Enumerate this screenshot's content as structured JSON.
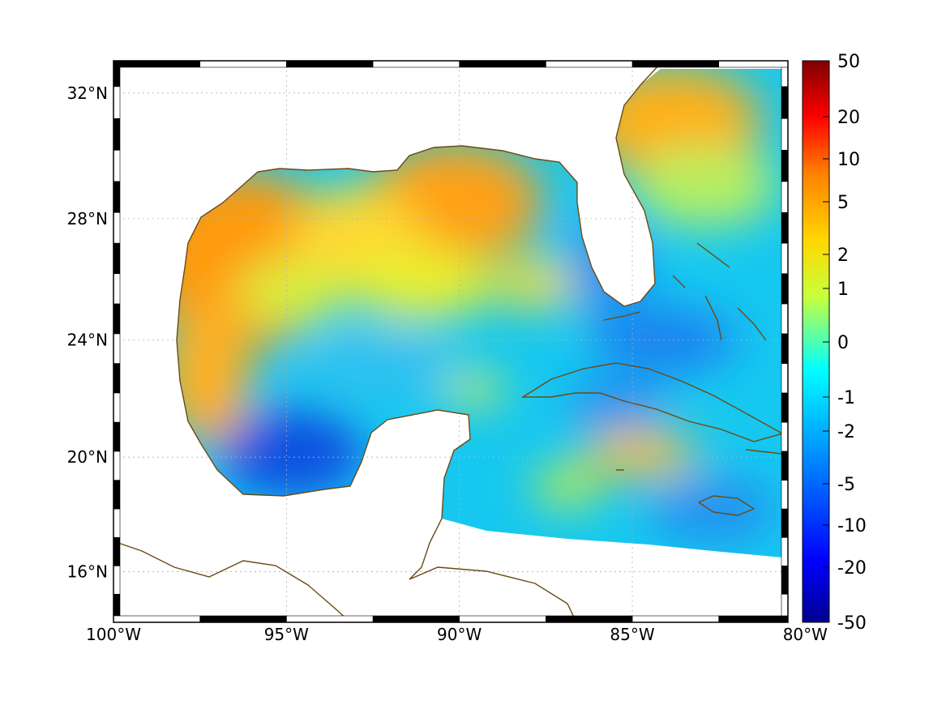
{
  "map": {
    "projection": "mercator-like",
    "lon_range": [
      -100,
      -80.5
    ],
    "lat_range": [
      14.2,
      33
    ],
    "lon_ticks": [
      {
        "value": -100,
        "label": "100°W"
      },
      {
        "value": -95,
        "label": "95°W"
      },
      {
        "value": -90,
        "label": "90°W"
      },
      {
        "value": -85,
        "label": "85°W"
      },
      {
        "value": -80,
        "label": "80°W"
      }
    ],
    "lat_ticks": [
      {
        "value": 32,
        "label": "32°N"
      },
      {
        "value": 28,
        "label": "28°N"
      },
      {
        "value": 24,
        "label": "24°N"
      },
      {
        "value": 20,
        "label": "20°N"
      },
      {
        "value": 16,
        "label": "16°N"
      }
    ],
    "grid": "dotted",
    "coastline_color": "#6b4a14"
  },
  "colorbar": {
    "scale": "symlog",
    "ticks": [
      "50",
      "20",
      "10",
      "5",
      "2",
      "1",
      "0",
      "-1",
      "-2",
      "-5",
      "-10",
      "-20",
      "-50"
    ],
    "colormap": [
      "#7f0000",
      "#ff0000",
      "#ff8000",
      "#ffd700",
      "#c8ff3c",
      "#00ffff",
      "#0090ff",
      "#0000ff",
      "#00008f"
    ]
  }
}
